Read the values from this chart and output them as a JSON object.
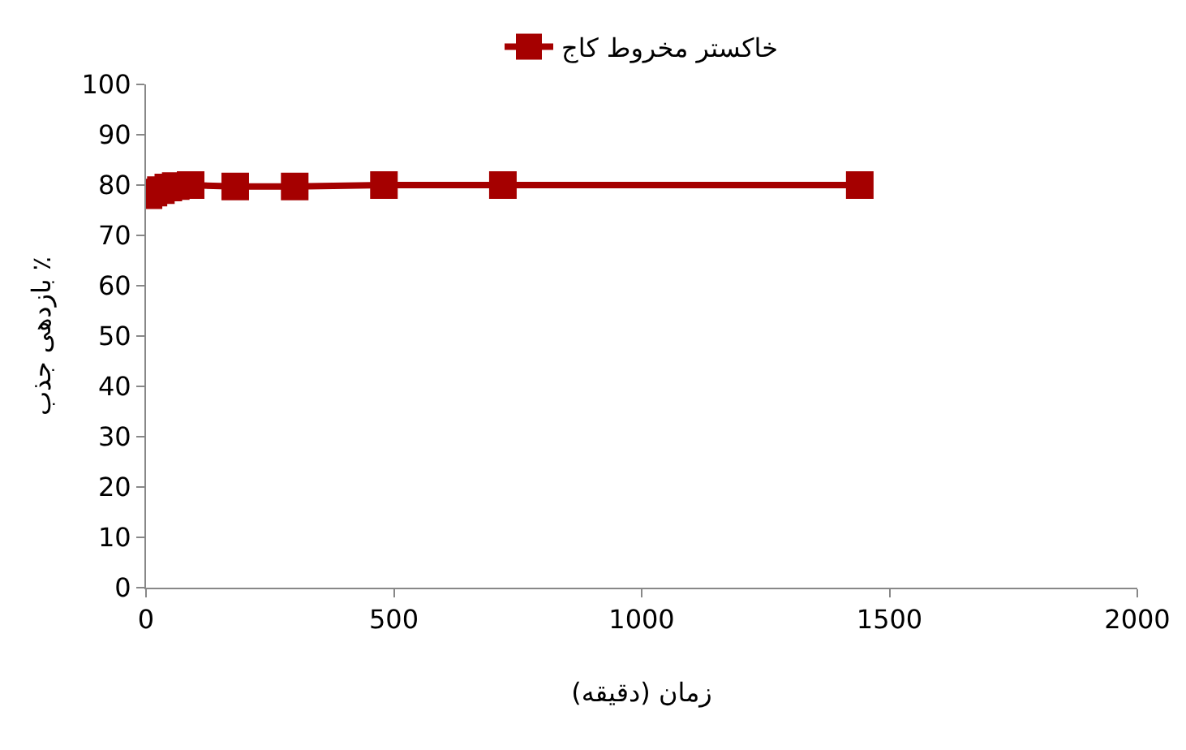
{
  "chart_data": {
    "type": "line",
    "xlabel": "زمان (دقیقه)",
    "ylabel": "بازدهی جذب ٪",
    "x": [
      5,
      15,
      30,
      45,
      60,
      90,
      180,
      300,
      480,
      720,
      1440
    ],
    "series": [
      {
        "name": "خاکستر مخروط کاج",
        "color": "#a50000",
        "values": [
          78,
          78.5,
          79,
          79.5,
          79.8,
          80,
          79.7,
          79.7,
          80,
          80,
          80
        ]
      }
    ],
    "xlim": [
      0,
      2000
    ],
    "xticks": [
      0,
      500,
      1000,
      1500,
      2000
    ],
    "ylim": [
      0,
      100
    ],
    "yticks": [
      0,
      10,
      20,
      30,
      40,
      50,
      60,
      70,
      80,
      90,
      100
    ],
    "grid": false,
    "legend": "top",
    "marker": "square",
    "line_style": "solid"
  }
}
